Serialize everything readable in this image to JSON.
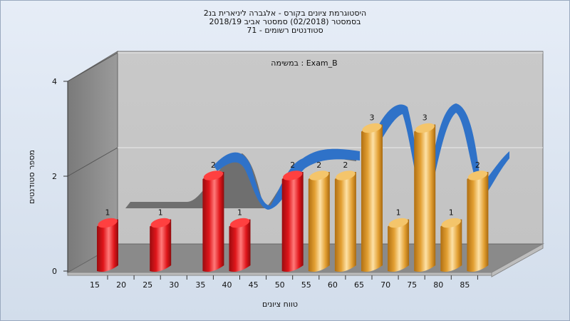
{
  "chart_data": {
    "type": "bar",
    "title": [
      "היסטוגרמת ציונים בקורס - אלגברה ליניארית בנ2",
      "בסמסטר  (02/2018)  סמסטר אביב 2018/19",
      "סטודנטים רשומים - 71"
    ],
    "subtitle": "במשימה : Exam_B",
    "xlabel": "טווח ציונים",
    "ylabel": "מספר סטודנטים",
    "x_ticks": [
      15,
      20,
      25,
      30,
      35,
      40,
      45,
      50,
      55,
      60,
      65,
      70,
      75,
      80,
      85
    ],
    "y_ticks": [
      0,
      2,
      4
    ],
    "ylim": [
      0,
      4
    ],
    "bars": [
      {
        "x": 15,
        "value": 1,
        "color": "red"
      },
      {
        "x": 25,
        "value": 1,
        "color": "red"
      },
      {
        "x": 35,
        "value": 2,
        "color": "red"
      },
      {
        "x": 40,
        "value": 1,
        "color": "red"
      },
      {
        "x": 50,
        "value": 2,
        "color": "red"
      },
      {
        "x": 55,
        "value": 2,
        "color": "gold"
      },
      {
        "x": 60,
        "value": 2,
        "color": "gold"
      },
      {
        "x": 65,
        "value": 3,
        "color": "gold"
      },
      {
        "x": 70,
        "value": 1,
        "color": "gold"
      },
      {
        "x": 75,
        "value": 3,
        "color": "gold"
      },
      {
        "x": 80,
        "value": 1,
        "color": "gold"
      },
      {
        "x": 85,
        "value": 2,
        "color": "gold"
      }
    ],
    "colors": {
      "fail": "#e0161b",
      "pass": "#e3a033",
      "curve": "#2f72c8"
    }
  }
}
